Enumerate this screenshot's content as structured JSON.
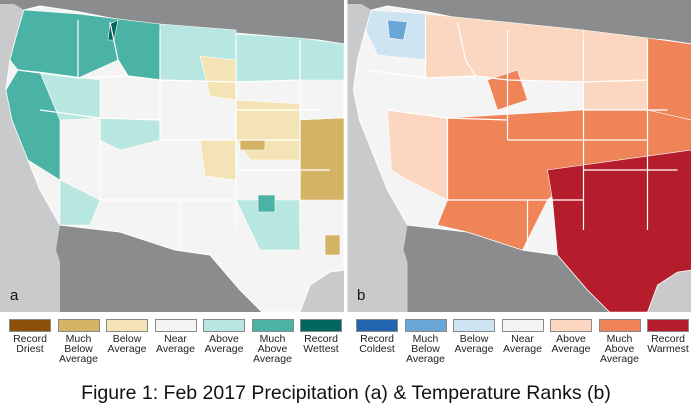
{
  "figure": {
    "caption": "Figure 1: Feb 2017 Precipitation (a) & Temperature Ranks (b)"
  },
  "map_a": {
    "letter": "a",
    "colors": {
      "record_driest": "#8c5109",
      "much_below": "#d5b364",
      "below": "#f4e4b5",
      "near": "#f4f4f4",
      "above": "#b8e6e0",
      "much_above": "#4bb3a5",
      "record_wettest": "#01665e"
    },
    "legend": [
      {
        "label": "Record\nDriest",
        "color": "#8c5109"
      },
      {
        "label": "Much\nBelow\nAverage",
        "color": "#d5b364"
      },
      {
        "label": "Below\nAverage",
        "color": "#f4e4b5"
      },
      {
        "label": "Near\nAverage",
        "color": "#f4f4f4"
      },
      {
        "label": "Above\nAverage",
        "color": "#b8e6e0"
      },
      {
        "label": "Much\nAbove\nAverage",
        "color": "#4bb3a5"
      },
      {
        "label": "Record\nWettest",
        "color": "#01665e"
      }
    ]
  },
  "map_b": {
    "letter": "b",
    "colors": {
      "record_coldest": "#2466b0",
      "much_below": "#6aa7d6",
      "below": "#cfe4f3",
      "near": "#f4f4f4",
      "above": "#fbd6c0",
      "much_above": "#ee8457",
      "record_warmest": "#b51c2c"
    },
    "legend": [
      {
        "label": "Record\nColdest",
        "color": "#2466b0"
      },
      {
        "label": "Much\nBelow\nAverage",
        "color": "#6aa7d6"
      },
      {
        "label": "Below\nAverage",
        "color": "#cfe4f3"
      },
      {
        "label": "Near\nAverage",
        "color": "#f4f4f4"
      },
      {
        "label": "Above\nAverage",
        "color": "#fbd6c0"
      },
      {
        "label": "Much\nAbove\nAverage",
        "color": "#ee8457"
      },
      {
        "label": "Record\nWarmest",
        "color": "#b51c2c"
      }
    ]
  },
  "map_style": {
    "water": "#c9cacb",
    "land_outside": "#8b8c8e",
    "border": "#ffffff"
  }
}
